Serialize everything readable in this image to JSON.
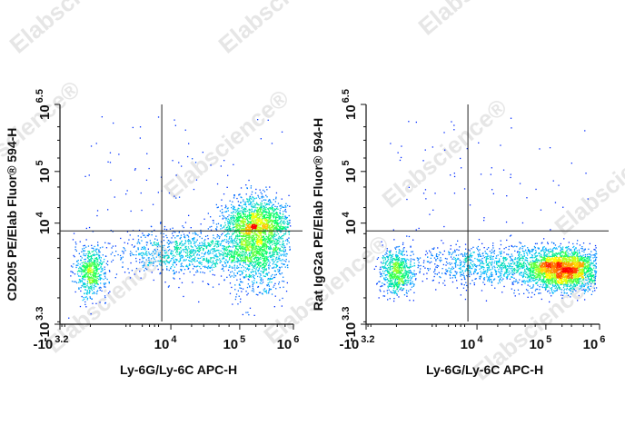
{
  "watermark": "Elabscience®",
  "chart_data": [
    {
      "type": "scatter",
      "style": "density pseudocolor dot plot",
      "xlabel": "Ly-6G/Ly-6C APC-H",
      "ylabel": "CD205 PE/Elab Fluor® 594-H",
      "x_ticks": [
        {
          "base": "-10",
          "exp": "3.2",
          "value": -1585
        },
        {
          "base": "10",
          "exp": "4",
          "value": 10000
        },
        {
          "base": "10",
          "exp": "5",
          "value": 100000
        },
        {
          "base": "10",
          "exp": "6",
          "value": 1000000
        }
      ],
      "y_ticks": [
        {
          "base": "-10",
          "exp": "3.3",
          "value": -1995
        },
        {
          "base": "10",
          "exp": "4",
          "value": 10000
        },
        {
          "base": "10",
          "exp": "5",
          "value": 100000
        },
        {
          "base": "10",
          "exp": "6.5",
          "value": 3162278
        }
      ],
      "xlim": [
        -1585,
        1000000
      ],
      "ylim": [
        -1995,
        3162278
      ],
      "gate": {
        "x": 6000,
        "y": 6000
      },
      "populations": [
        {
          "x": 0,
          "y": 100,
          "weight": 0.14
        },
        {
          "x": 200000,
          "y": 6000,
          "weight": 0.62
        },
        {
          "x": 20000,
          "y": 1500,
          "weight": 0.24
        }
      ],
      "density_colors": [
        "#0000ff",
        "#00c0ff",
        "#00ff60",
        "#ffff00",
        "#ff0000"
      ]
    },
    {
      "type": "scatter",
      "style": "density pseudocolor dot plot",
      "xlabel": "Ly-6G/Ly-6C APC-H",
      "ylabel": "Rat IgG2a PE/Elab Fluor® 594-H",
      "x_ticks": [
        {
          "base": "-10",
          "exp": "3.2",
          "value": -1585
        },
        {
          "base": "10",
          "exp": "4",
          "value": 10000
        },
        {
          "base": "10",
          "exp": "5",
          "value": 100000
        },
        {
          "base": "10",
          "exp": "6",
          "value": 1000000
        }
      ],
      "y_ticks": [
        {
          "base": "-10",
          "exp": "3.3",
          "value": -1995
        },
        {
          "base": "10",
          "exp": "4",
          "value": 10000
        },
        {
          "base": "10",
          "exp": "5",
          "value": 100000
        },
        {
          "base": "10",
          "exp": "6.5",
          "value": 3162278
        }
      ],
      "xlim": [
        -1585,
        1000000
      ],
      "ylim": [
        -1995,
        3162278
      ],
      "gate": {
        "x": 6000,
        "y": 6000
      },
      "populations": [
        {
          "x": 0,
          "y": 100,
          "weight": 0.16
        },
        {
          "x": 200000,
          "y": 150,
          "weight": 0.6
        },
        {
          "x": 20000,
          "y": 300,
          "weight": 0.24
        }
      ],
      "density_colors": [
        "#0000ff",
        "#00c0ff",
        "#00ff60",
        "#ffff00",
        "#ff0000"
      ]
    }
  ]
}
